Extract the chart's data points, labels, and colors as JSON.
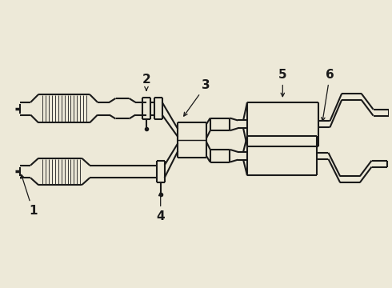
{
  "bg_color": "#ede9d8",
  "line_color": "#1a1a1a",
  "lw": 1.5,
  "label_fontsize": 11,
  "figsize": [
    4.9,
    3.6
  ],
  "dpi": 100
}
